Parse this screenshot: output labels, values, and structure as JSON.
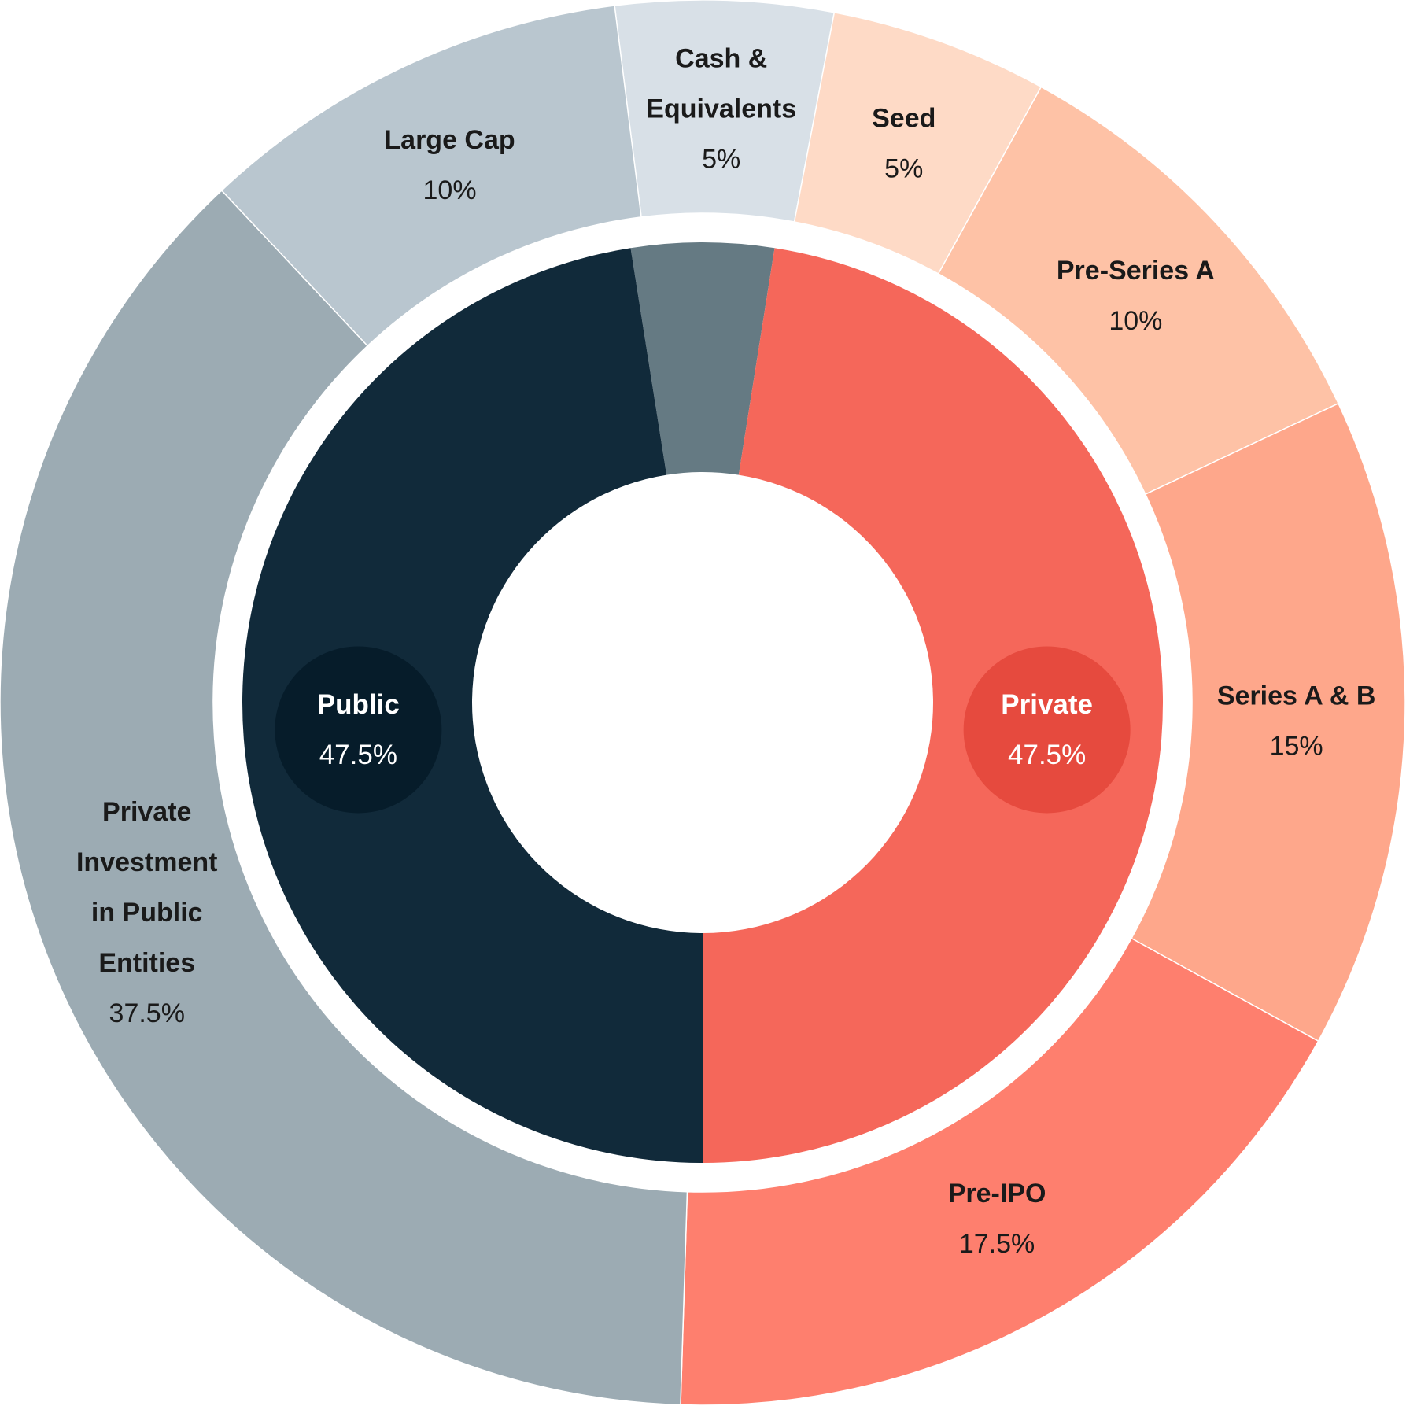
{
  "chart_data": {
    "type": "pie",
    "subtype": "nested-donut",
    "inner_ring": [
      {
        "name": "Public",
        "value": 47.5,
        "value_label": "47.5%",
        "color": "#112a3a",
        "badge_color": "#061c2a",
        "show_label": true
      },
      {
        "name": "",
        "value": 5,
        "value_label": "",
        "color": "#657a83",
        "badge_color": "",
        "show_label": false
      },
      {
        "name": "Private",
        "value": 47.5,
        "value_label": "47.5%",
        "color": "#f5675a",
        "badge_color": "#e64a3e",
        "show_label": true
      }
    ],
    "outer_ring": [
      {
        "name_lines": [
          "Cash &",
          "Equivalents"
        ],
        "value": 5,
        "value_label": "5%",
        "color": "#d8e0e7",
        "group": "cash"
      },
      {
        "name_lines": [
          "Seed"
        ],
        "value": 5,
        "value_label": "5%",
        "color": "#fedac6",
        "group": "Private"
      },
      {
        "name_lines": [
          "Pre-Series A"
        ],
        "value": 10,
        "value_label": "10%",
        "color": "#fec2a6",
        "group": "Private"
      },
      {
        "name_lines": [
          "Series A & B"
        ],
        "value": 15,
        "value_label": "15%",
        "color": "#fea78b",
        "group": "Private"
      },
      {
        "name_lines": [
          "Pre-IPO"
        ],
        "value": 17.5,
        "value_label": "17.5%",
        "color": "#fe7f6e",
        "group": "Private"
      },
      {
        "name_lines": [
          "Private",
          "Investment",
          "in Public",
          "Entities"
        ],
        "value": 37.5,
        "value_label": "37.5%",
        "color": "#9cabb3",
        "group": "Public"
      },
      {
        "name_lines": [
          "Large Cap"
        ],
        "value": 10,
        "value_label": "10%",
        "color": "#b9c6cf",
        "group": "Public"
      }
    ],
    "legend": "none",
    "grid": false
  }
}
